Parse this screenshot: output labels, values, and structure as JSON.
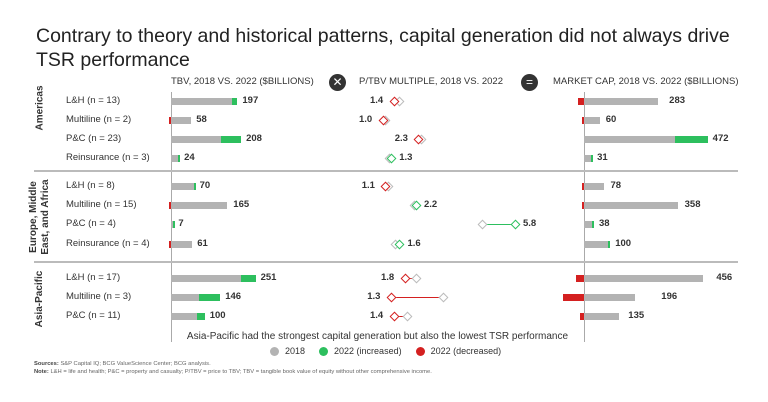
{
  "title": "Contrary to theory and historical patterns, capital generation did not always drive TSR performance",
  "headers": {
    "tbv": "TBV, 2018 VS. 2022 ($BILLIONS)",
    "ptbv": "P/TBV MULTIPLE, 2018 VS. 2022",
    "mcap": "MARKET CAP, 2018 VS. 2022 ($BILLIONS)",
    "op_times": "✕",
    "op_equals": "="
  },
  "annotation": "Asia-Pacific had the strongest capital generation but also the lowest TSR performance",
  "legend": [
    {
      "label": "2018",
      "color": "#b3b3b3"
    },
    {
      "label": "2022 (increased)",
      "color": "#2dbf5e"
    },
    {
      "label": "2022 (decreased)",
      "color": "#d42020"
    }
  ],
  "sources_label": "Sources:",
  "sources": "S&P Capital IQ; BCG ValueScience Center; BCG analysis.",
  "note_label": "Note:",
  "note": "L&H = life and health; P&C = property and casualty; P/TBV = price to TBV; TBV = tangible book value of equity without other comprehensive income.",
  "colors": {
    "gray": "#b3b3b3",
    "green": "#2dbf5e",
    "red": "#d42020"
  },
  "chart_data": {
    "type": "bar",
    "regions": [
      {
        "name": "Americas",
        "rows": [
          {
            "label": "L&H (n = 13)",
            "tbv": [
              181,
              197
            ],
            "ptbv": [
              1.6,
              1.4
            ],
            "mcap": [
              306,
              283
            ]
          },
          {
            "label": "Multiline (n = 2)",
            "tbv": [
              60,
              58
            ],
            "ptbv": [
              1.1,
              1.0
            ],
            "mcap": [
              64,
              60
            ]
          },
          {
            "label": "P&C (n = 23)",
            "tbv": [
              148,
              208
            ],
            "ptbv": [
              2.4,
              2.3
            ],
            "mcap": [
              346,
              472
            ]
          },
          {
            "label": "Reinsurance (n = 3)",
            "tbv": [
              20,
              24
            ],
            "ptbv": [
              1.25,
              1.3
            ],
            "mcap": [
              27,
              31
            ]
          }
        ]
      },
      {
        "name": "Europe, Middle East, and Africa",
        "rows": [
          {
            "label": "L&H (n = 8)",
            "tbv": [
              68,
              70
            ],
            "ptbv": [
              1.2,
              1.1
            ],
            "mcap": [
              82,
              78
            ]
          },
          {
            "label": "Multiline (n = 15)",
            "tbv": [
              170,
              165
            ],
            "ptbv": [
              2.15,
              2.2
            ],
            "mcap": [
              365,
              358
            ]
          },
          {
            "label": "P&C (n = 4)",
            "tbv": [
              6,
              7
            ],
            "ptbv": [
              4.6,
              5.8
            ],
            "mcap": [
              30,
              38
            ]
          },
          {
            "label": "Reinsurance (n = 4)",
            "tbv": [
              63,
              61
            ],
            "ptbv": [
              1.45,
              1.6
            ],
            "mcap": [
              92,
              100
            ]
          }
        ]
      },
      {
        "name": "Asia-Pacific",
        "rows": [
          {
            "label": "L&H (n = 17)",
            "tbv": [
              208,
              251
            ],
            "ptbv": [
              2.2,
              1.8
            ],
            "mcap": [
              486,
              456
            ]
          },
          {
            "label": "Multiline (n = 3)",
            "tbv": [
              84,
              146
            ],
            "ptbv": [
              3.2,
              1.3
            ],
            "mcap": [
              276,
              196
            ]
          },
          {
            "label": "P&C (n = 11)",
            "tbv": [
              77,
              100
            ],
            "ptbv": [
              1.9,
              1.4
            ],
            "mcap": [
              150,
              135
            ]
          }
        ]
      }
    ]
  }
}
